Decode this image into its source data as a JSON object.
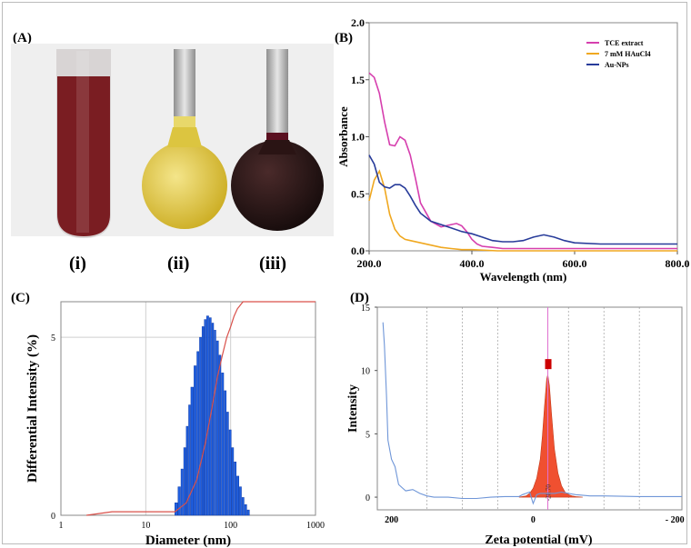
{
  "panels": {
    "a": {
      "label": "(A)",
      "vial_labels": [
        "(i)",
        "(ii)",
        "(iii)"
      ],
      "vial_colors": [
        "#7a1d22",
        "#e3cf3c",
        "#241314"
      ]
    },
    "b": {
      "label": "(B)"
    },
    "c": {
      "label": "(C)"
    },
    "d": {
      "label": "(D)"
    }
  },
  "chart_data": [
    {
      "panel": "B",
      "type": "line",
      "xlabel": "Wavelength (nm)",
      "ylabel": "Absorbance",
      "xlim": [
        200,
        800
      ],
      "ylim": [
        0,
        2.0
      ],
      "x_ticks": [
        "200.0",
        "400.0",
        "600.0",
        "800.0"
      ],
      "y_ticks": [
        "0.0",
        "0.5",
        "1.0",
        "1.5",
        "2.0"
      ],
      "legend_position": "top-right",
      "grid": false,
      "series": [
        {
          "name": "TCE extract",
          "color": "#d63fae",
          "x": [
            200,
            210,
            220,
            230,
            240,
            250,
            260,
            270,
            280,
            290,
            300,
            320,
            340,
            360,
            370,
            380,
            390,
            400,
            410,
            420,
            440,
            460,
            500,
            550,
            600,
            700,
            800
          ],
          "y": [
            1.56,
            1.52,
            1.38,
            1.13,
            0.93,
            0.92,
            1.0,
            0.97,
            0.84,
            0.64,
            0.42,
            0.26,
            0.21,
            0.23,
            0.24,
            0.22,
            0.17,
            0.1,
            0.06,
            0.04,
            0.03,
            0.02,
            0.02,
            0.02,
            0.02,
            0.02,
            0.02
          ]
        },
        {
          "name": "7 mM HAuCl4",
          "color": "#f0a820",
          "x": [
            200,
            210,
            220,
            230,
            240,
            250,
            260,
            270,
            280,
            300,
            320,
            340,
            360,
            380,
            400,
            450,
            500,
            600,
            700,
            800
          ],
          "y": [
            0.44,
            0.62,
            0.7,
            0.55,
            0.32,
            0.19,
            0.13,
            0.1,
            0.09,
            0.07,
            0.05,
            0.03,
            0.02,
            0.01,
            0.01,
            0.0,
            0.0,
            0.0,
            0.0,
            0.0
          ]
        },
        {
          "name": "Au-NPs",
          "color": "#283c9a",
          "x": [
            200,
            210,
            220,
            230,
            240,
            250,
            260,
            270,
            280,
            290,
            300,
            320,
            340,
            360,
            380,
            400,
            420,
            440,
            460,
            480,
            500,
            520,
            540,
            560,
            580,
            600,
            650,
            700,
            800
          ],
          "y": [
            0.84,
            0.76,
            0.6,
            0.56,
            0.55,
            0.58,
            0.58,
            0.55,
            0.48,
            0.4,
            0.33,
            0.26,
            0.23,
            0.2,
            0.17,
            0.15,
            0.12,
            0.09,
            0.08,
            0.08,
            0.09,
            0.12,
            0.14,
            0.12,
            0.09,
            0.07,
            0.06,
            0.06,
            0.06
          ]
        }
      ]
    },
    {
      "panel": "C",
      "type": "bar",
      "xlabel": "Diameter (nm)",
      "ylabel": "Differential Intensity (%)",
      "xscale": "log",
      "xlim": [
        1,
        1000
      ],
      "ylim": [
        0,
        6
      ],
      "x_ticks": [
        "1",
        "10",
        "100",
        "1000"
      ],
      "y_ticks": [
        "0",
        "5"
      ],
      "grid": true,
      "bars": {
        "color": "#1f5fe0",
        "x": [
          22,
          24,
          26,
          28,
          30,
          32,
          34,
          37,
          40,
          43,
          46,
          49,
          52,
          56,
          60,
          64,
          68,
          73,
          78,
          84,
          90,
          96,
          103,
          110,
          118,
          127,
          136,
          146,
          157
        ],
        "y": [
          0.35,
          0.8,
          1.3,
          1.9,
          2.5,
          3.1,
          3.6,
          4.2,
          4.6,
          5.0,
          5.3,
          5.5,
          5.6,
          5.55,
          5.4,
          5.2,
          4.9,
          4.5,
          4.0,
          3.5,
          2.9,
          2.4,
          1.9,
          1.5,
          1.1,
          0.8,
          0.5,
          0.3,
          0.15
        ]
      },
      "cumulative": {
        "color": "#d9504a",
        "x": [
          2,
          4,
          22,
          30,
          40,
          50,
          60,
          70,
          80,
          90,
          100,
          110,
          120,
          140,
          200,
          1000
        ],
        "y": [
          0,
          0.1,
          0.1,
          0.35,
          1.0,
          2.0,
          3.0,
          3.9,
          4.5,
          5.0,
          5.3,
          5.6,
          5.8,
          6.0,
          6.0,
          6.0
        ]
      }
    },
    {
      "panel": "D",
      "type": "area",
      "xlabel": "Zeta potential (mV)",
      "ylabel": "Intensity",
      "xlim": [
        220,
        -210
      ],
      "ylim": [
        -1,
        15
      ],
      "x_ticks": [
        "200",
        "0",
        "- 200"
      ],
      "y_ticks": [
        "0",
        "5",
        "10",
        "15"
      ],
      "grid": true,
      "peak": {
        "value": "-20.70",
        "color": "#f05030",
        "marker_color": "#cc0000"
      },
      "baseline": {
        "color": "#6f96d8",
        "x": [
          212,
          210,
          207,
          205,
          200,
          195,
          190,
          180,
          170,
          160,
          150,
          140,
          120,
          100,
          80,
          60,
          40,
          20,
          15,
          10,
          5,
          0,
          -5,
          -10,
          -15,
          -20,
          -30,
          -40,
          -60,
          -80,
          -100,
          -150,
          -200,
          -210
        ],
        "y": [
          13.8,
          12.0,
          8.0,
          4.5,
          3.0,
          2.4,
          1.0,
          0.5,
          0.6,
          0.3,
          0.1,
          0.0,
          0.0,
          -0.1,
          -0.1,
          0.0,
          0.05,
          0.05,
          0.2,
          0.3,
          0.4,
          -0.5,
          0.2,
          0.3,
          0.3,
          0.3,
          0.3,
          0.4,
          0.2,
          0.1,
          0.1,
          0.05,
          0.05,
          0.05
        ]
      },
      "peak_curve": {
        "x": [
          20,
          10,
          5,
          0,
          -5,
          -10,
          -13,
          -16,
          -19,
          -20.7,
          -23,
          -26,
          -30,
          -35,
          -40,
          -45,
          -50,
          -55,
          -60,
          -70
        ],
        "y": [
          0.0,
          0.1,
          0.3,
          0.7,
          1.5,
          3.0,
          4.8,
          7.2,
          9.3,
          9.7,
          8.8,
          6.5,
          3.8,
          1.9,
          0.9,
          0.4,
          0.2,
          0.1,
          0.05,
          0.0
        ]
      }
    }
  ]
}
